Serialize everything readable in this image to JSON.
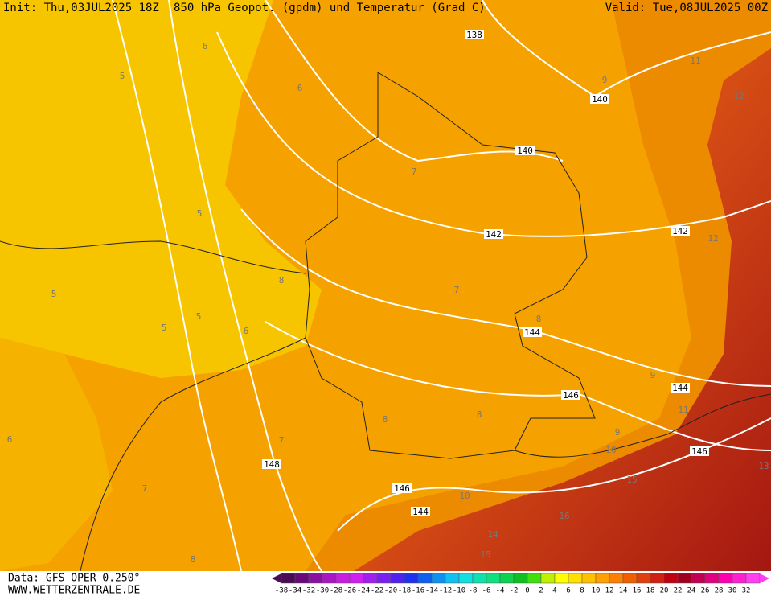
{
  "header": {
    "init": "Init: Thu,03JUL2025 18Z",
    "title": "850 hPa Geopot. (gpdm) und Temperatur (Grad C)",
    "valid": "Valid: Tue,08JUL2025 00Z"
  },
  "footer": {
    "source": "Data: GFS OPER 0.250°",
    "website": "WWW.WETTERZENTRALE.DE"
  },
  "scale": {
    "labels": [
      "-38",
      "-34",
      "-32",
      "-30",
      "-28",
      "-26",
      "-24",
      "-22",
      "-20",
      "-18",
      "-16",
      "-14",
      "-12",
      "-10",
      "-8",
      "-6",
      "-4",
      "-2",
      "0",
      "2",
      "4",
      "6",
      "8",
      "10",
      "12",
      "14",
      "16",
      "18",
      "20",
      "22",
      "24",
      "26",
      "28",
      "30",
      "32"
    ]
  },
  "geopotential_labels": [
    "138",
    "140",
    "140",
    "142",
    "142",
    "144",
    "144",
    "146",
    "146",
    "148",
    "146",
    "144"
  ],
  "isotherm_labels": [
    "5",
    "6",
    "7",
    "8",
    "5",
    "5",
    "5",
    "5",
    "6",
    "7",
    "8",
    "9",
    "11",
    "12",
    "12",
    "11",
    "9",
    "16",
    "14",
    "13",
    "7",
    "7",
    "8",
    "8",
    "9",
    "8",
    "10",
    "10",
    "15",
    "15",
    "6",
    "6"
  ]
}
